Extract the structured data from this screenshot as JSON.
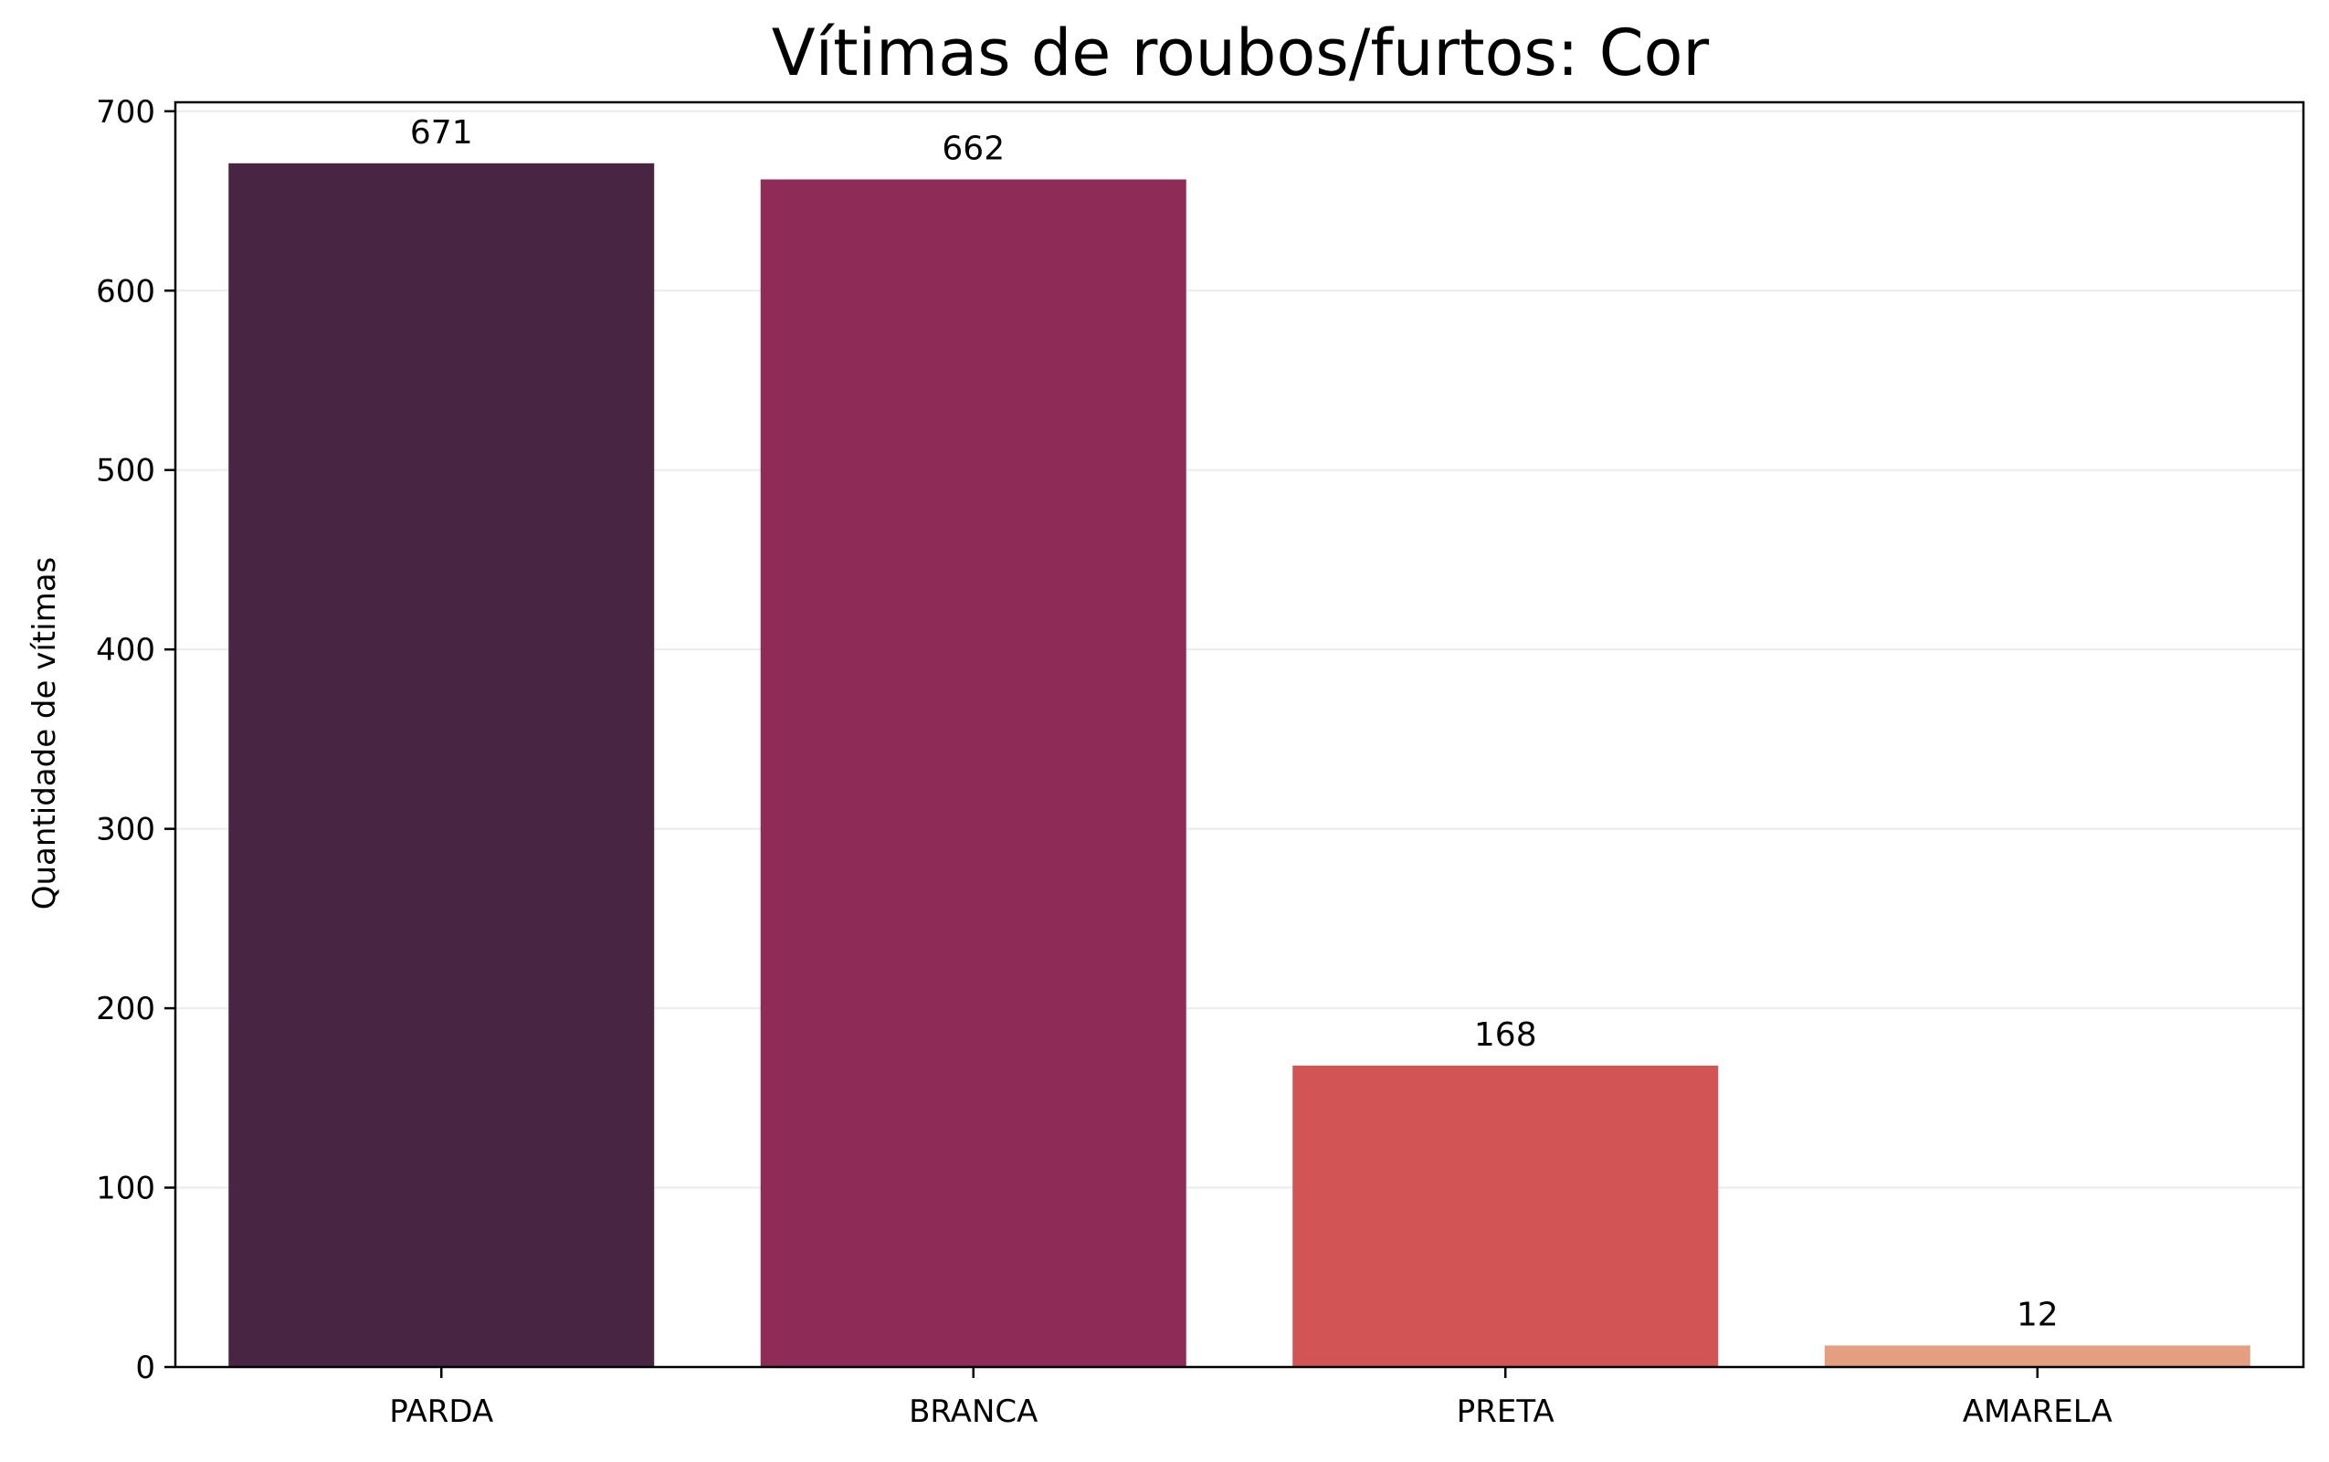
{
  "chart_data": {
    "type": "bar",
    "title": "Vítimas de roubos/furtos: Cor",
    "xlabel": "",
    "ylabel": "Quantidade de vítimas",
    "categories": [
      "PARDA",
      "BRANCA",
      "PRETA",
      "AMARELA"
    ],
    "values": [
      671,
      662,
      168,
      12
    ],
    "value_labels": [
      "671",
      "662",
      "168",
      "12"
    ],
    "colors": [
      "#472543",
      "#8e2b57",
      "#d25455",
      "#e49f80"
    ],
    "ylim": [
      0,
      705
    ],
    "yticks": [
      0,
      100,
      200,
      300,
      400,
      500,
      600,
      700
    ],
    "ytick_labels": [
      "0",
      "100",
      "200",
      "300",
      "400",
      "500",
      "600",
      "700"
    ],
    "grid": "y",
    "legend": "none"
  }
}
